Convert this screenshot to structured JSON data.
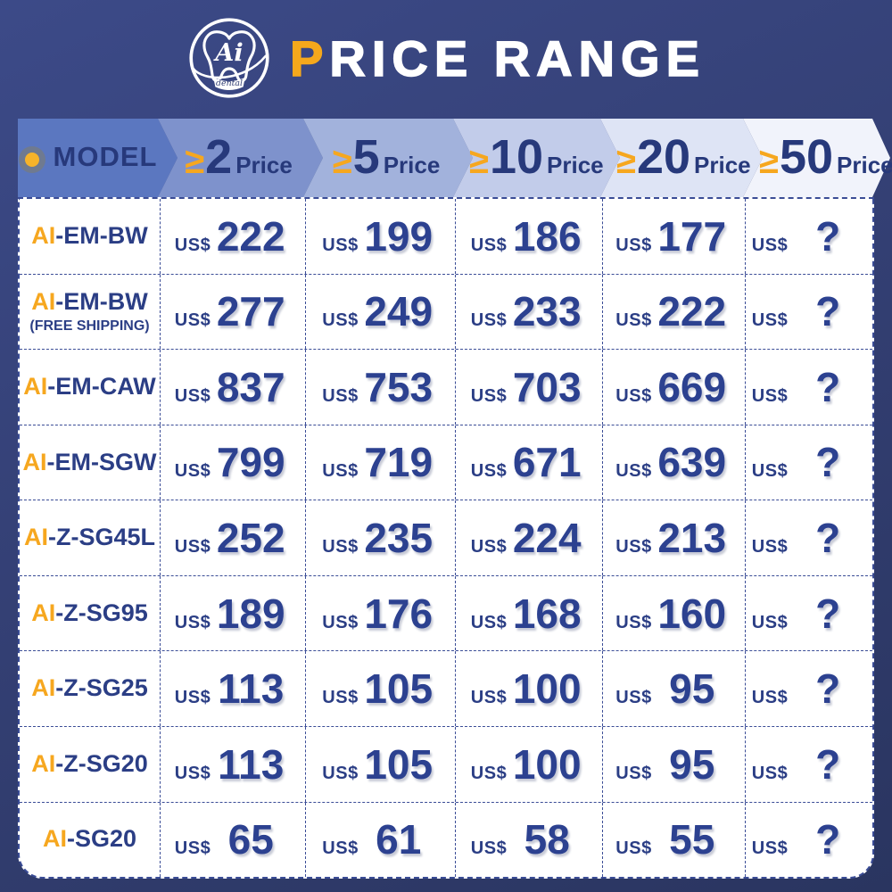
{
  "colors": {
    "background_top": "#3C4A88",
    "background_bottom": "#2A3560",
    "accent_orange": "#F5A81C",
    "navy_text": "#2B3E85",
    "table_bg": "#FFFFFF",
    "chevron_fills": [
      "#5B77C0",
      "#7E92CC",
      "#A2B2DC",
      "#C2CCEA",
      "#DEE4F5",
      "#F1F3FB"
    ]
  },
  "header": {
    "logo_text": "Ai",
    "logo_subtext": "dental",
    "title_accent": "P",
    "title_rest": "RICE RANGE"
  },
  "table": {
    "model_header": "MODEL",
    "currency": "US$",
    "price_headers": [
      {
        "symbol": "≥",
        "qty": "2",
        "label": "Price"
      },
      {
        "symbol": "≥",
        "qty": "5",
        "label": "Price"
      },
      {
        "symbol": "≥",
        "qty": "10",
        "label": "Price"
      },
      {
        "symbol": "≥",
        "qty": "20",
        "label": "Price"
      },
      {
        "symbol": "≥",
        "qty": "50",
        "label": "Price"
      }
    ],
    "rows": [
      {
        "model_prefix": "AI",
        "model_suffix": "-EM-BW",
        "note": "",
        "prices": [
          "222",
          "199",
          "186",
          "177",
          "?"
        ]
      },
      {
        "model_prefix": "AI",
        "model_suffix": "-EM-BW",
        "note": "(FREE SHIPPING)",
        "prices": [
          "277",
          "249",
          "233",
          "222",
          "?"
        ]
      },
      {
        "model_prefix": "AI",
        "model_suffix": "-EM-CAW",
        "note": "",
        "prices": [
          "837",
          "753",
          "703",
          "669",
          "?"
        ]
      },
      {
        "model_prefix": "AI",
        "model_suffix": "-EM-SGW",
        "note": "",
        "prices": [
          "799",
          "719",
          "671",
          "639",
          "?"
        ]
      },
      {
        "model_prefix": "AI",
        "model_suffix": "-Z-SG45L",
        "note": "",
        "prices": [
          "252",
          "235",
          "224",
          "213",
          "?"
        ]
      },
      {
        "model_prefix": "AI",
        "model_suffix": "-Z-SG95",
        "note": "",
        "prices": [
          "189",
          "176",
          "168",
          "160",
          "?"
        ]
      },
      {
        "model_prefix": "AI",
        "model_suffix": "-Z-SG25",
        "note": "",
        "prices": [
          "113",
          "105",
          "100",
          "95",
          "?"
        ]
      },
      {
        "model_prefix": "AI",
        "model_suffix": "-Z-SG20",
        "note": "",
        "prices": [
          "113",
          "105",
          "100",
          "95",
          "?"
        ]
      },
      {
        "model_prefix": "AI",
        "model_suffix": "-SG20",
        "note": "",
        "prices": [
          "65",
          "61",
          "58",
          "55",
          "?"
        ]
      }
    ]
  },
  "chart_data": {
    "type": "table",
    "title": "PRICE RANGE",
    "currency": "US$",
    "columns": [
      "MODEL",
      "≥2 Price",
      "≥5 Price",
      "≥10 Price",
      "≥20 Price",
      "≥50 Price"
    ],
    "rows": [
      [
        "AI-EM-BW",
        222,
        199,
        186,
        177,
        "?"
      ],
      [
        "AI-EM-BW (FREE SHIPPING)",
        277,
        249,
        233,
        222,
        "?"
      ],
      [
        "AI-EM-CAW",
        837,
        753,
        703,
        669,
        "?"
      ],
      [
        "AI-EM-SGW",
        799,
        719,
        671,
        639,
        "?"
      ],
      [
        "AI-Z-SG45L",
        252,
        235,
        224,
        213,
        "?"
      ],
      [
        "AI-Z-SG95",
        189,
        176,
        168,
        160,
        "?"
      ],
      [
        "AI-Z-SG25",
        113,
        105,
        100,
        95,
        "?"
      ],
      [
        "AI-Z-SG20",
        113,
        105,
        100,
        95,
        "?"
      ],
      [
        "AI-SG20",
        65,
        61,
        58,
        55,
        "?"
      ]
    ]
  }
}
